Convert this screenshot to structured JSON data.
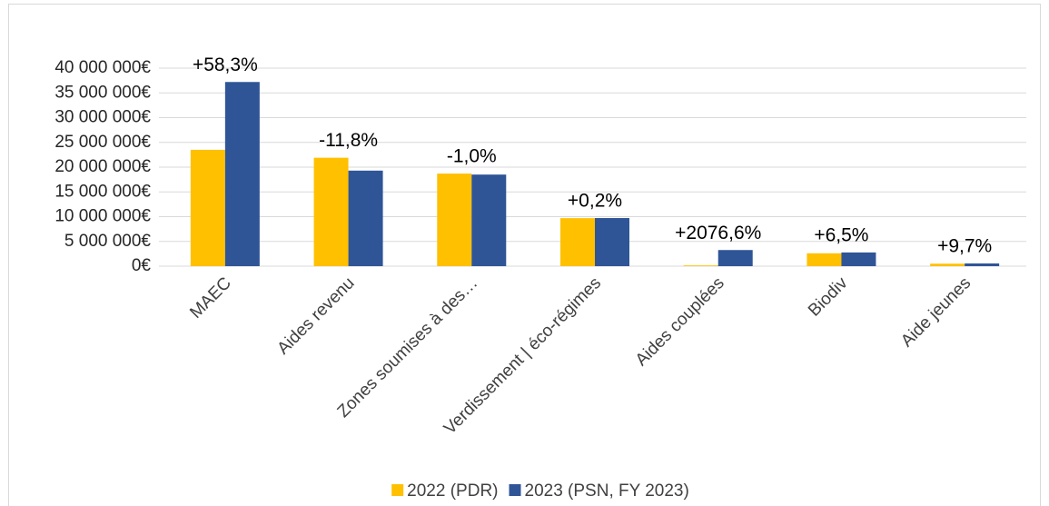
{
  "chart_data": {
    "type": "bar",
    "categories": [
      "MAEC",
      "Aides revenu",
      "Zones soumises à des…",
      "Verdissement | éco-régimes",
      "Aides couplées",
      "Biodiv",
      "Aide jeunes"
    ],
    "series": [
      {
        "name": "2022 (PDR)",
        "color": "#ffc000",
        "values": [
          23500000,
          21900000,
          18700000,
          9700000,
          150000,
          2600000,
          500000
        ]
      },
      {
        "name": "2023 (PSN, FY 2023)",
        "color": "#2f5597",
        "values": [
          37200000,
          19300000,
          18500000,
          9720000,
          3260000,
          2770000,
          550000
        ]
      }
    ],
    "annotations": [
      "+58,3%",
      "-11,8%",
      "-1,0%",
      "+0,2%",
      "+2076,6%",
      "+6,5%",
      "+9,7%"
    ],
    "ylim": [
      0,
      40000000
    ],
    "yticks": [
      {
        "value": 0,
        "label": "0€"
      },
      {
        "value": 5000000,
        "label": "5 000 000€"
      },
      {
        "value": 10000000,
        "label": "10 000 000€"
      },
      {
        "value": 15000000,
        "label": "15 000 000€"
      },
      {
        "value": 20000000,
        "label": "20 000 000€"
      },
      {
        "value": 25000000,
        "label": "25 000 000€"
      },
      {
        "value": 30000000,
        "label": "30 000 000€"
      },
      {
        "value": 35000000,
        "label": "35 000 000€"
      },
      {
        "value": 40000000,
        "label": "40 000 000€"
      }
    ],
    "grid": true,
    "legend": "bottom"
  }
}
